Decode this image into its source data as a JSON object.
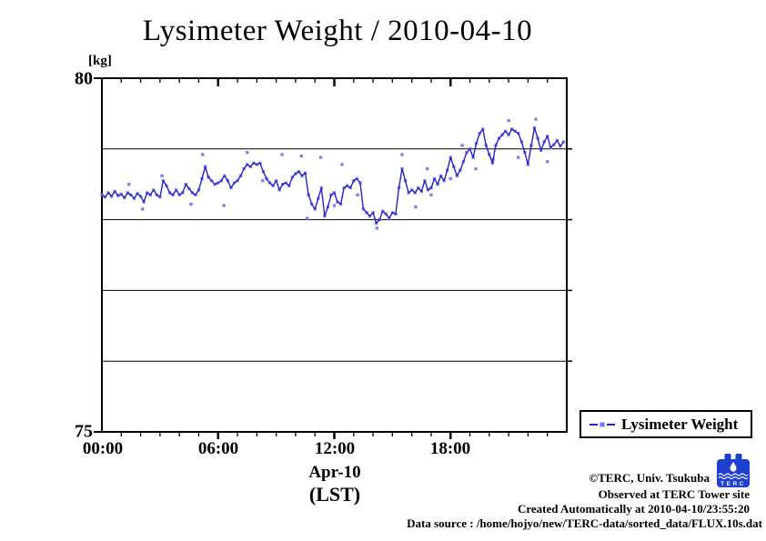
{
  "title": "Lysimeter Weight / 2010-04-10",
  "chart_data": {
    "type": "line",
    "title": "Lysimeter Weight / 2010-04-10",
    "y_axis_unit": "[kg]",
    "ylim": [
      75,
      80
    ],
    "y_tick_labels": [
      "80",
      "75"
    ],
    "gridlines_kg": [
      76,
      77,
      78,
      79
    ],
    "x_range_hours": [
      0,
      24
    ],
    "x_tick_hours": [
      0,
      6,
      12,
      18
    ],
    "x_tick_labels": [
      "00:00",
      "06:00",
      "12:00",
      "18:00"
    ],
    "x_minor_tick_interval_hours": 1,
    "xlabel_line1": "Apr-10",
    "xlabel_line2": "(LST)",
    "grid": "horizontal-only",
    "legend": {
      "label": "Lysimeter Weight",
      "position": "outside-bottom-right"
    },
    "series": [
      {
        "name": "Lysimeter Weight",
        "line_color": "#2222cc",
        "marker_color": "#7878e6",
        "marker": "square",
        "start_hour": 0,
        "interval_minutes": 10,
        "values": [
          78.35,
          78.32,
          78.38,
          78.33,
          78.4,
          78.34,
          78.36,
          78.31,
          78.38,
          78.35,
          78.3,
          78.37,
          78.33,
          78.25,
          78.38,
          78.35,
          78.42,
          78.35,
          78.32,
          78.55,
          78.48,
          78.38,
          78.35,
          78.42,
          78.35,
          78.38,
          78.5,
          78.44,
          78.38,
          78.35,
          78.42,
          78.58,
          78.75,
          78.6,
          78.55,
          78.5,
          78.52,
          78.55,
          78.62,
          78.55,
          78.45,
          78.52,
          78.55,
          78.62,
          78.72,
          78.78,
          78.75,
          78.8,
          78.78,
          78.8,
          78.68,
          78.58,
          78.52,
          78.48,
          78.55,
          78.42,
          78.5,
          78.52,
          78.48,
          78.6,
          78.65,
          78.68,
          78.62,
          78.66,
          78.35,
          78.22,
          78.15,
          78.3,
          78.45,
          78.05,
          78.18,
          78.35,
          78.38,
          78.25,
          78.22,
          78.45,
          78.48,
          78.45,
          78.55,
          78.58,
          78.52,
          78.15,
          78.1,
          78.05,
          78.1,
          77.95,
          78.0,
          78.12,
          78.08,
          78.02,
          78.1,
          78.08,
          78.45,
          78.72,
          78.55,
          78.38,
          78.42,
          78.38,
          78.45,
          78.4,
          78.55,
          78.42,
          78.45,
          78.58,
          78.5,
          78.62,
          78.55,
          78.7,
          78.88,
          78.75,
          78.62,
          78.7,
          78.82,
          78.95,
          79.0,
          78.88,
          79.08,
          79.22,
          79.28,
          79.05,
          78.92,
          78.8,
          79.05,
          79.15,
          79.2,
          79.25,
          79.2,
          79.28,
          79.25,
          79.22,
          79.1,
          78.95,
          78.78,
          79.05,
          79.3,
          79.15,
          78.98,
          79.1,
          79.18,
          79.02,
          79.06,
          79.12,
          79.04,
          79.1
        ]
      }
    ],
    "outliers": [
      [
        1.4,
        78.5
      ],
      [
        2.1,
        78.15
      ],
      [
        3.1,
        78.62
      ],
      [
        4.6,
        78.22
      ],
      [
        5.2,
        78.92
      ],
      [
        6.3,
        78.2
      ],
      [
        7.5,
        78.95
      ],
      [
        8.3,
        78.55
      ],
      [
        9.3,
        78.92
      ],
      [
        10.3,
        78.9
      ],
      [
        10.6,
        78.02
      ],
      [
        11.3,
        78.88
      ],
      [
        12.0,
        78.2
      ],
      [
        12.4,
        78.78
      ],
      [
        13.2,
        78.35
      ],
      [
        14.2,
        77.88
      ],
      [
        15.5,
        78.92
      ],
      [
        16.2,
        78.18
      ],
      [
        16.8,
        78.72
      ],
      [
        17.0,
        78.35
      ],
      [
        18.0,
        78.58
      ],
      [
        18.6,
        79.05
      ],
      [
        19.3,
        78.72
      ],
      [
        20.2,
        78.85
      ],
      [
        21.0,
        79.4
      ],
      [
        21.5,
        78.88
      ],
      [
        22.4,
        79.42
      ],
      [
        23.0,
        78.82
      ]
    ]
  },
  "footer": {
    "credit": "©TERC, Univ. Tsukuba",
    "observed": "Observed at TERC Tower site",
    "created": "Created Automatically at 2010-04-10/23:55:20",
    "data_source": "Data source : /home/hojyo/new/TERC-data/sorted_data/FLUX.10s.dat",
    "logo_text": "TERC"
  }
}
